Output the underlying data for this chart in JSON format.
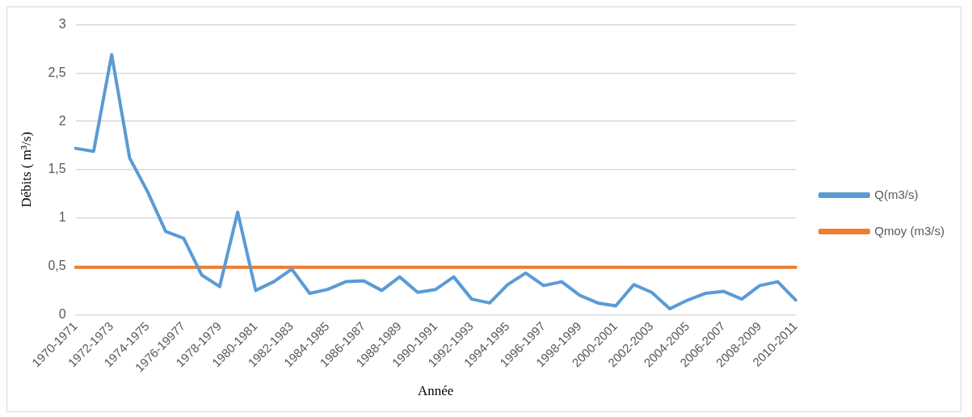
{
  "chart_data": {
    "type": "line",
    "xlabel": "Année",
    "ylabel": "Débits ( m³/s)",
    "categories": [
      "1970-1971",
      null,
      "1972-1973",
      null,
      "1974-1975",
      null,
      "1976-19977",
      null,
      "1978-1979",
      null,
      "1980-1981",
      null,
      "1982-1983",
      null,
      "1984-1985",
      null,
      "1986-1987",
      null,
      "1988-1989",
      null,
      "1990-1991",
      null,
      "1992-1993",
      null,
      "1994-1995",
      null,
      "1996-1997",
      null,
      "1998-1999",
      null,
      "2000-2001",
      null,
      "2002-2003",
      null,
      "2004-2005",
      null,
      "2006-2007",
      null,
      "2008-2009",
      null,
      "2010-2011"
    ],
    "series": [
      {
        "name": "Q(m3/s)",
        "color": "#5b9bd5",
        "values": [
          1.72,
          1.69,
          2.69,
          1.62,
          1.27,
          0.86,
          0.79,
          0.41,
          0.29,
          1.06,
          0.25,
          0.34,
          0.47,
          0.22,
          0.26,
          0.34,
          0.35,
          0.25,
          0.39,
          0.23,
          0.26,
          0.39,
          0.16,
          0.12,
          0.31,
          0.43,
          0.3,
          0.34,
          0.2,
          0.12,
          0.09,
          0.31,
          0.23,
          0.06,
          0.15,
          0.22,
          0.24,
          0.16,
          0.3,
          0.34,
          0.15
        ]
      },
      {
        "name": "Qmoy (m3/s)",
        "color": "#ed7d31",
        "values": [
          0.49,
          0.49,
          0.49,
          0.49,
          0.49,
          0.49,
          0.49,
          0.49,
          0.49,
          0.49,
          0.49,
          0.49,
          0.49,
          0.49,
          0.49,
          0.49,
          0.49,
          0.49,
          0.49,
          0.49,
          0.49,
          0.49,
          0.49,
          0.49,
          0.49,
          0.49,
          0.49,
          0.49,
          0.49,
          0.49,
          0.49,
          0.49,
          0.49,
          0.49,
          0.49,
          0.49,
          0.49,
          0.49,
          0.49,
          0.49,
          0.49
        ]
      }
    ],
    "ylim": [
      0,
      3
    ],
    "yticks": [
      0,
      {
        "value": 0.5,
        "label": "0,5"
      },
      1,
      {
        "value": 1.5,
        "label": "1,5"
      },
      2,
      {
        "value": 2.5,
        "label": "2,5"
      },
      3
    ],
    "grid": "y",
    "legend": "right",
    "marker": "none",
    "line_style": "solid"
  }
}
